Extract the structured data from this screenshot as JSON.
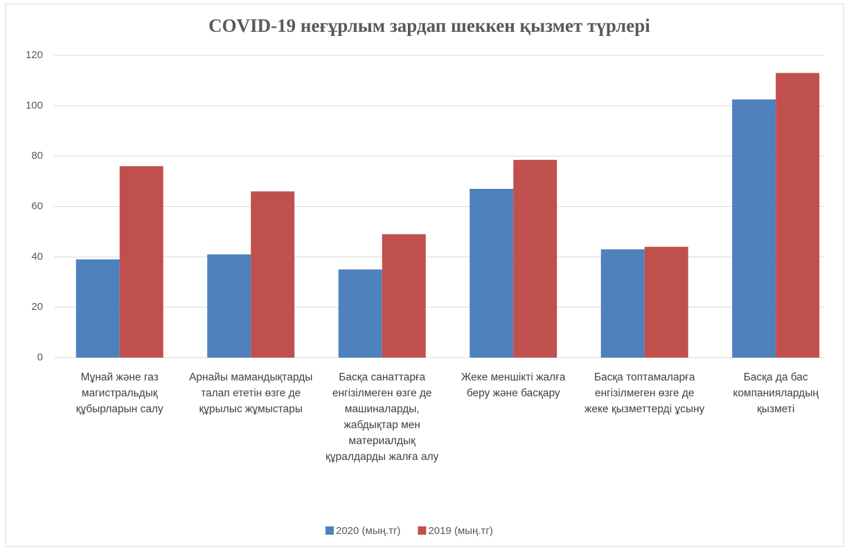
{
  "chart_data": {
    "type": "bar",
    "title": "COVID-19 неғұрлым зардап шеккен қызмет түрлері",
    "categories": [
      "Мұнай және газ магистральдық құбырларын салу",
      "Арнайы мамандықтарды талап ететін өзге де құрылыс жұмыстары",
      "Басқа санаттарға енгізілмеген өзге де машиналарды, жабдықтар мен материалдық құралдарды жалға алу",
      "Жеке меншікті жалға беру және басқару",
      "Басқа топтамаларға енгізілмеген өзге де жеке қызметтерді ұсыну",
      "Басқа да бас компаниялардың қызметі"
    ],
    "series": [
      {
        "name": "2020 (мың.тг)",
        "color": "#4f81bd",
        "values": [
          39,
          41,
          35,
          67,
          43,
          102.5
        ]
      },
      {
        "name": "2019 (мың.тг)",
        "color": "#c0504d",
        "values": [
          76,
          66,
          49,
          78.5,
          44,
          113
        ]
      }
    ],
    "ylim": [
      0,
      120
    ],
    "yticks": [
      0,
      20,
      40,
      60,
      80,
      100,
      120
    ],
    "grid": true,
    "legend": "bottom"
  }
}
